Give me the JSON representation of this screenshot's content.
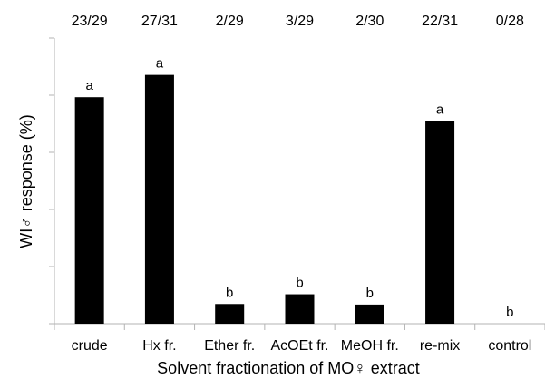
{
  "chart_data": {
    "type": "bar",
    "title": "",
    "xlabel": "Solvent fractionation of MO♀ extract",
    "ylabel": "WI♂ response (%)",
    "ylim": [
      0,
      100
    ],
    "y_tick_labels_shown": false,
    "grid": false,
    "categories": [
      "crude",
      "Hx fr.",
      "Ether fr.",
      "AcOEt fr.",
      "MeOH fr.",
      "re-mix",
      "control"
    ],
    "counts": [
      "23/29",
      "27/31",
      "2/29",
      "3/29",
      "2/30",
      "22/31",
      "0/28"
    ],
    "values": [
      79.3,
      87.1,
      6.9,
      10.3,
      6.7,
      71.0,
      0
    ],
    "significance_letters": [
      "a",
      "a",
      "b",
      "b",
      "b",
      "a",
      "b"
    ],
    "bar_color": "#000000",
    "axis_color": "#b3b3b3"
  }
}
